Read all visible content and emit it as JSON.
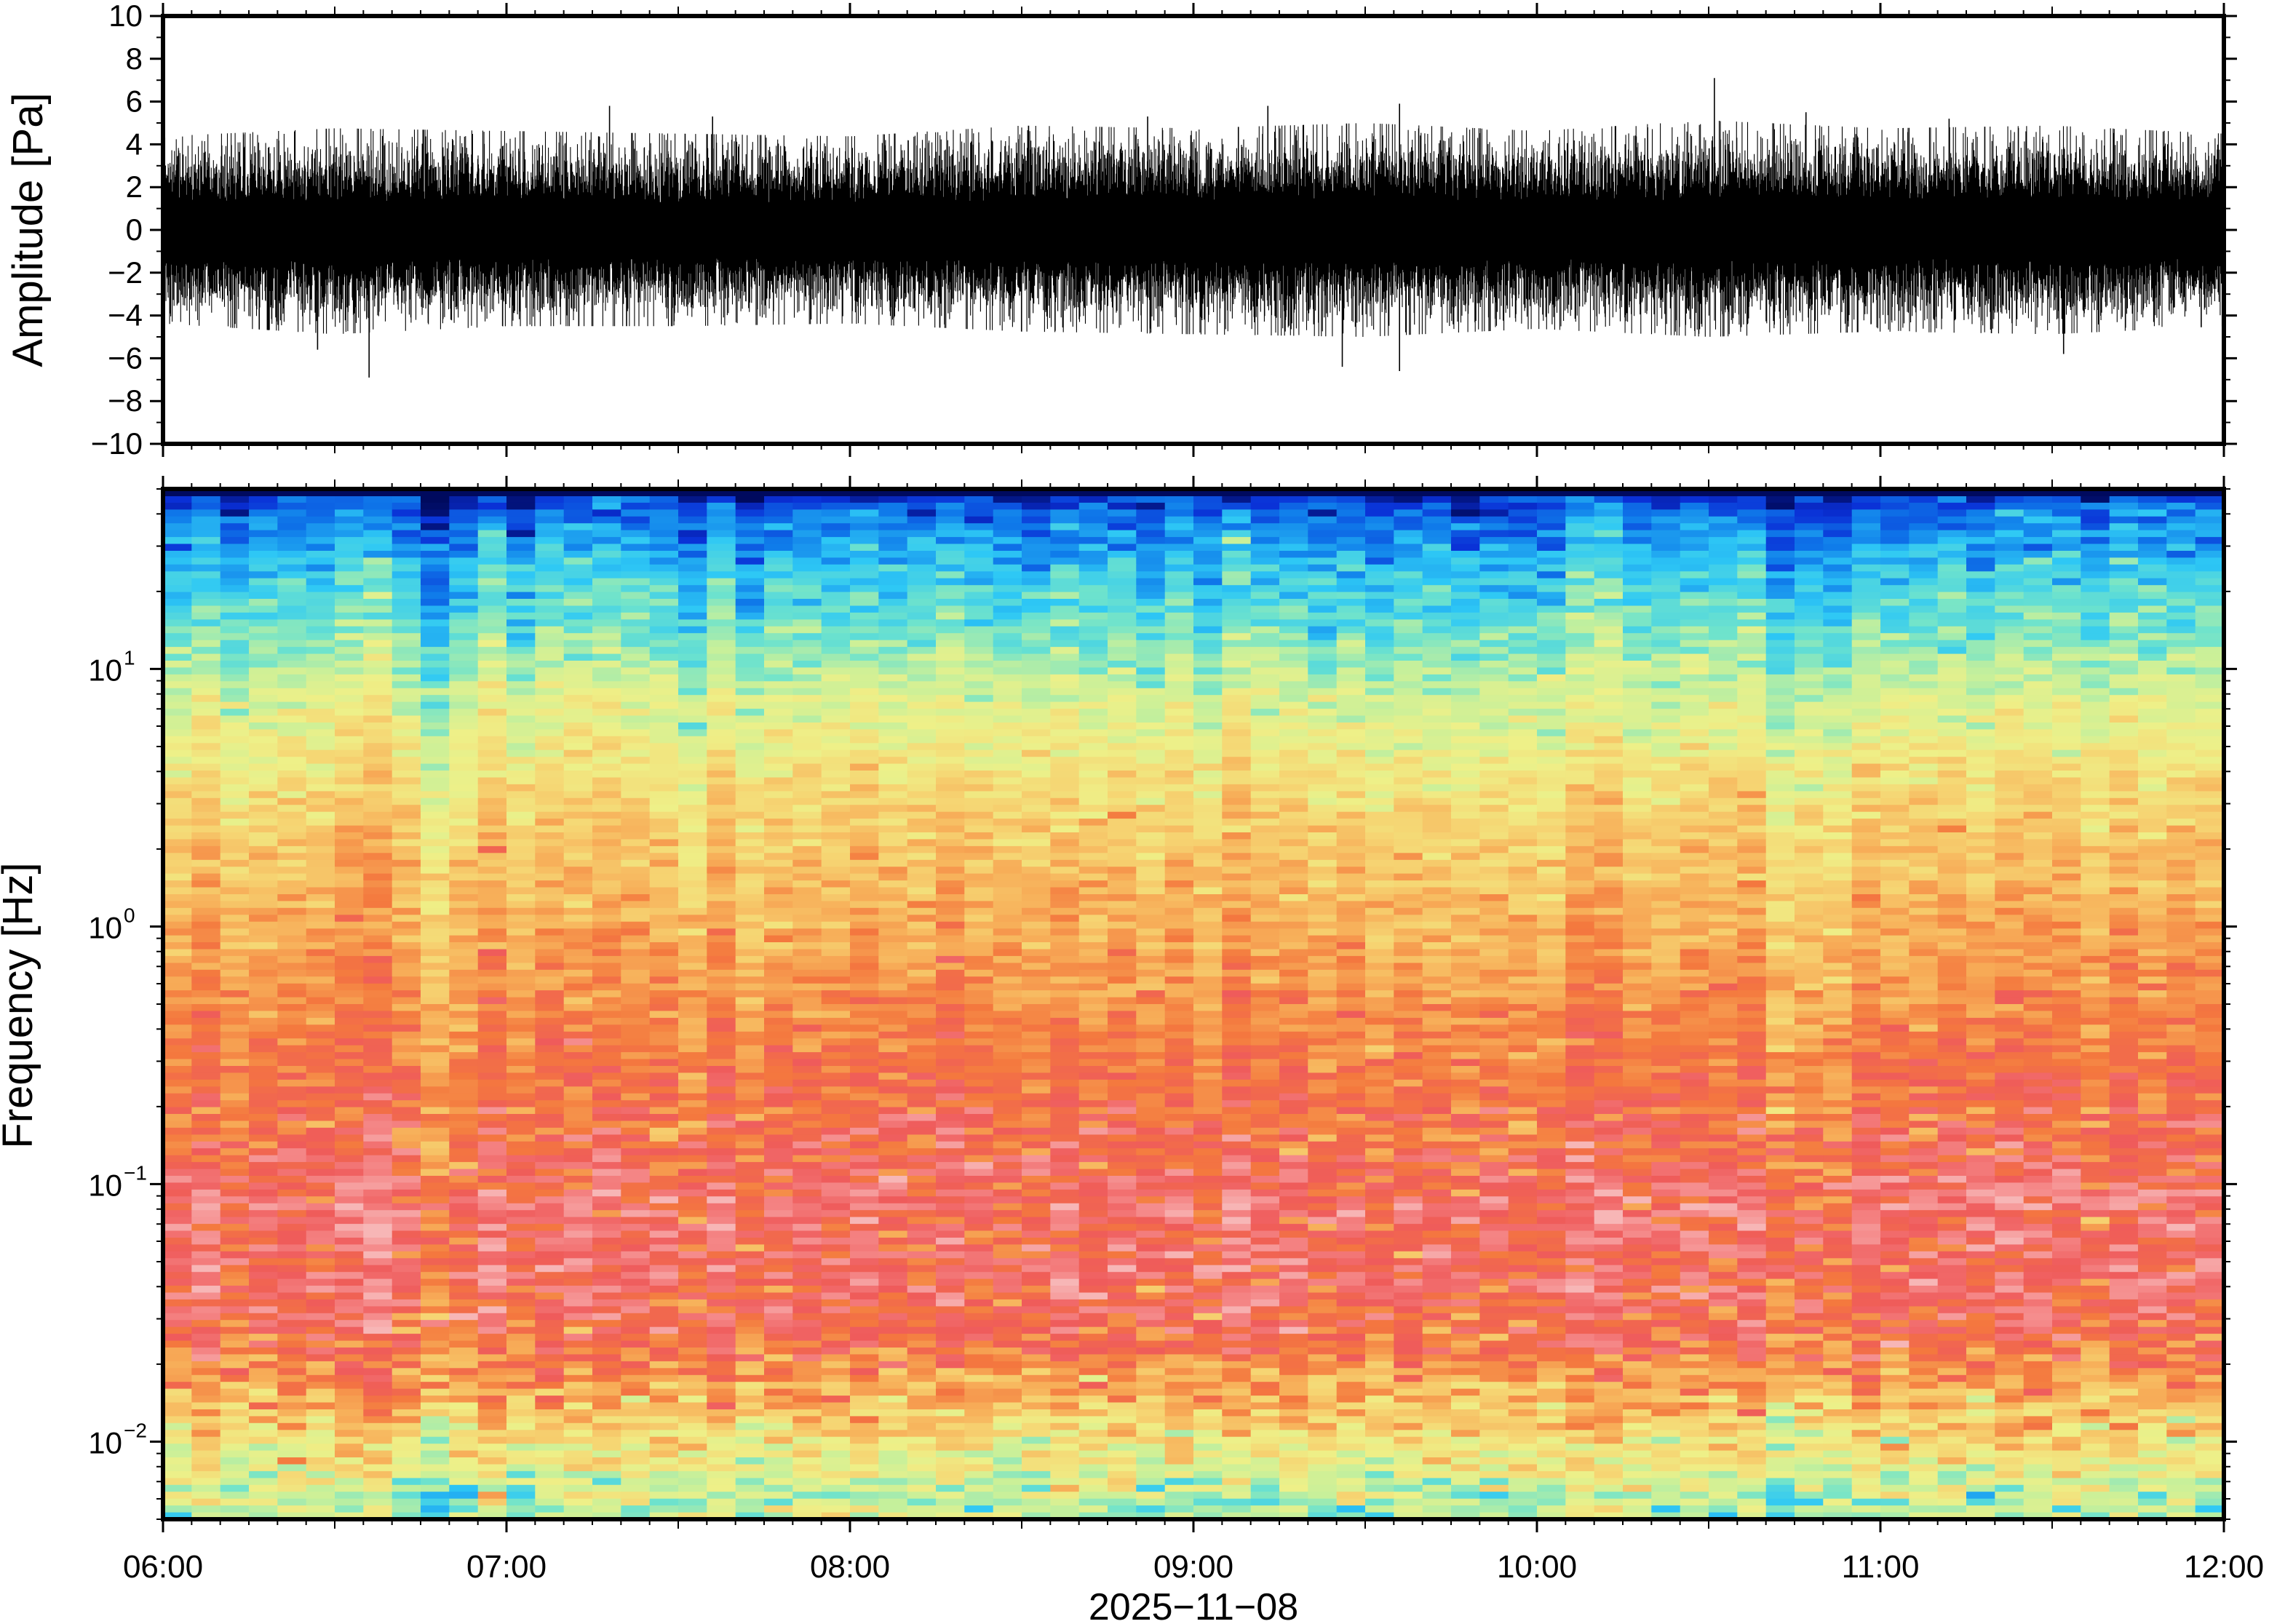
{
  "chart_data": [
    {
      "type": "line",
      "panel": "waveform",
      "ylabel": "Amplitude [Pa]",
      "ylim": [
        -10,
        10
      ],
      "yticks": [
        -10,
        -8,
        -6,
        -4,
        -2,
        0,
        2,
        4,
        6,
        8,
        10
      ],
      "ytick_labels": [
        "−10",
        "−8",
        "−6",
        "−4",
        "−2",
        "0",
        "2",
        "4",
        "6",
        "8",
        "10"
      ],
      "xlim": [
        "06:00",
        "12:00"
      ],
      "grid": false,
      "line_color": "#000000",
      "x": [
        "06:00",
        "06:30",
        "07:00",
        "07:30",
        "08:00",
        "08:30",
        "09:00",
        "09:30",
        "10:00",
        "10:30",
        "11:00",
        "11:30",
        "12:00"
      ],
      "envelope_upper": [
        3.5,
        3.8,
        3.7,
        3.6,
        3.5,
        3.9,
        3.8,
        4.0,
        3.7,
        4.1,
        3.8,
        3.9,
        3.6
      ],
      "envelope_lower": [
        -3.5,
        -3.9,
        -3.6,
        -3.6,
        -3.5,
        -3.8,
        -3.9,
        -4.0,
        -3.7,
        -4.0,
        -3.8,
        -3.9,
        -3.6
      ],
      "peaks": [
        {
          "time": "06:27",
          "value": -5.6
        },
        {
          "time": "06:36",
          "value": -6.9
        },
        {
          "time": "07:18",
          "value": 5.8
        },
        {
          "time": "07:36",
          "value": 5.3
        },
        {
          "time": "08:52",
          "value": 5.3
        },
        {
          "time": "09:13",
          "value": 5.8
        },
        {
          "time": "09:26",
          "value": -6.4
        },
        {
          "time": "09:36",
          "value": 5.9
        },
        {
          "time": "09:36",
          "value": -6.6
        },
        {
          "time": "10:31",
          "value": 7.1
        },
        {
          "time": "10:47",
          "value": 5.5
        },
        {
          "time": "11:12",
          "value": 5.2
        },
        {
          "time": "11:32",
          "value": -5.8
        }
      ]
    },
    {
      "type": "heatmap",
      "panel": "spectrogram",
      "ylabel": "Frequency [Hz]",
      "yscale": "log",
      "ylim": [
        0.005,
        50
      ],
      "yticks": [
        0.01,
        0.1,
        1,
        10
      ],
      "ytick_labels": [
        {
          "base": "10",
          "exp": "−2"
        },
        {
          "base": "10",
          "exp": "−1"
        },
        {
          "base": "10",
          "exp": "0"
        },
        {
          "base": "10",
          "exp": "1"
        }
      ],
      "xlabel": "2025−11−08",
      "xlim": [
        "06:00",
        "12:00"
      ],
      "xticks": [
        "06:00",
        "07:00",
        "08:00",
        "09:00",
        "10:00",
        "11:00",
        "12:00"
      ],
      "colormap": "jet",
      "colormap_stops": [
        "#000a5e",
        "#0a2fd6",
        "#0f7bea",
        "#2ec8f5",
        "#6fe3cc",
        "#c8f09a",
        "#eef088",
        "#f6d472",
        "#f7ad58",
        "#f4783e",
        "#ef5b5b",
        "#f58a8a",
        "#f7b6b6"
      ],
      "profile": [
        {
          "freq": 48,
          "level": 0.08
        },
        {
          "freq": 40,
          "level": 0.16
        },
        {
          "freq": 25,
          "level": 0.26
        },
        {
          "freq": 15,
          "level": 0.34
        },
        {
          "freq": 8,
          "level": 0.45
        },
        {
          "freq": 4,
          "level": 0.55
        },
        {
          "freq": 2,
          "level": 0.62
        },
        {
          "freq": 1,
          "level": 0.67
        },
        {
          "freq": 0.5,
          "level": 0.72
        },
        {
          "freq": 0.3,
          "level": 0.76
        },
        {
          "freq": 0.15,
          "level": 0.8
        },
        {
          "freq": 0.08,
          "level": 0.86
        },
        {
          "freq": 0.04,
          "level": 0.85
        },
        {
          "freq": 0.025,
          "level": 0.79
        },
        {
          "freq": 0.017,
          "level": 0.7
        },
        {
          "freq": 0.012,
          "level": 0.6
        },
        {
          "freq": 0.008,
          "level": 0.5
        },
        {
          "freq": 0.006,
          "level": 0.42
        }
      ]
    }
  ]
}
